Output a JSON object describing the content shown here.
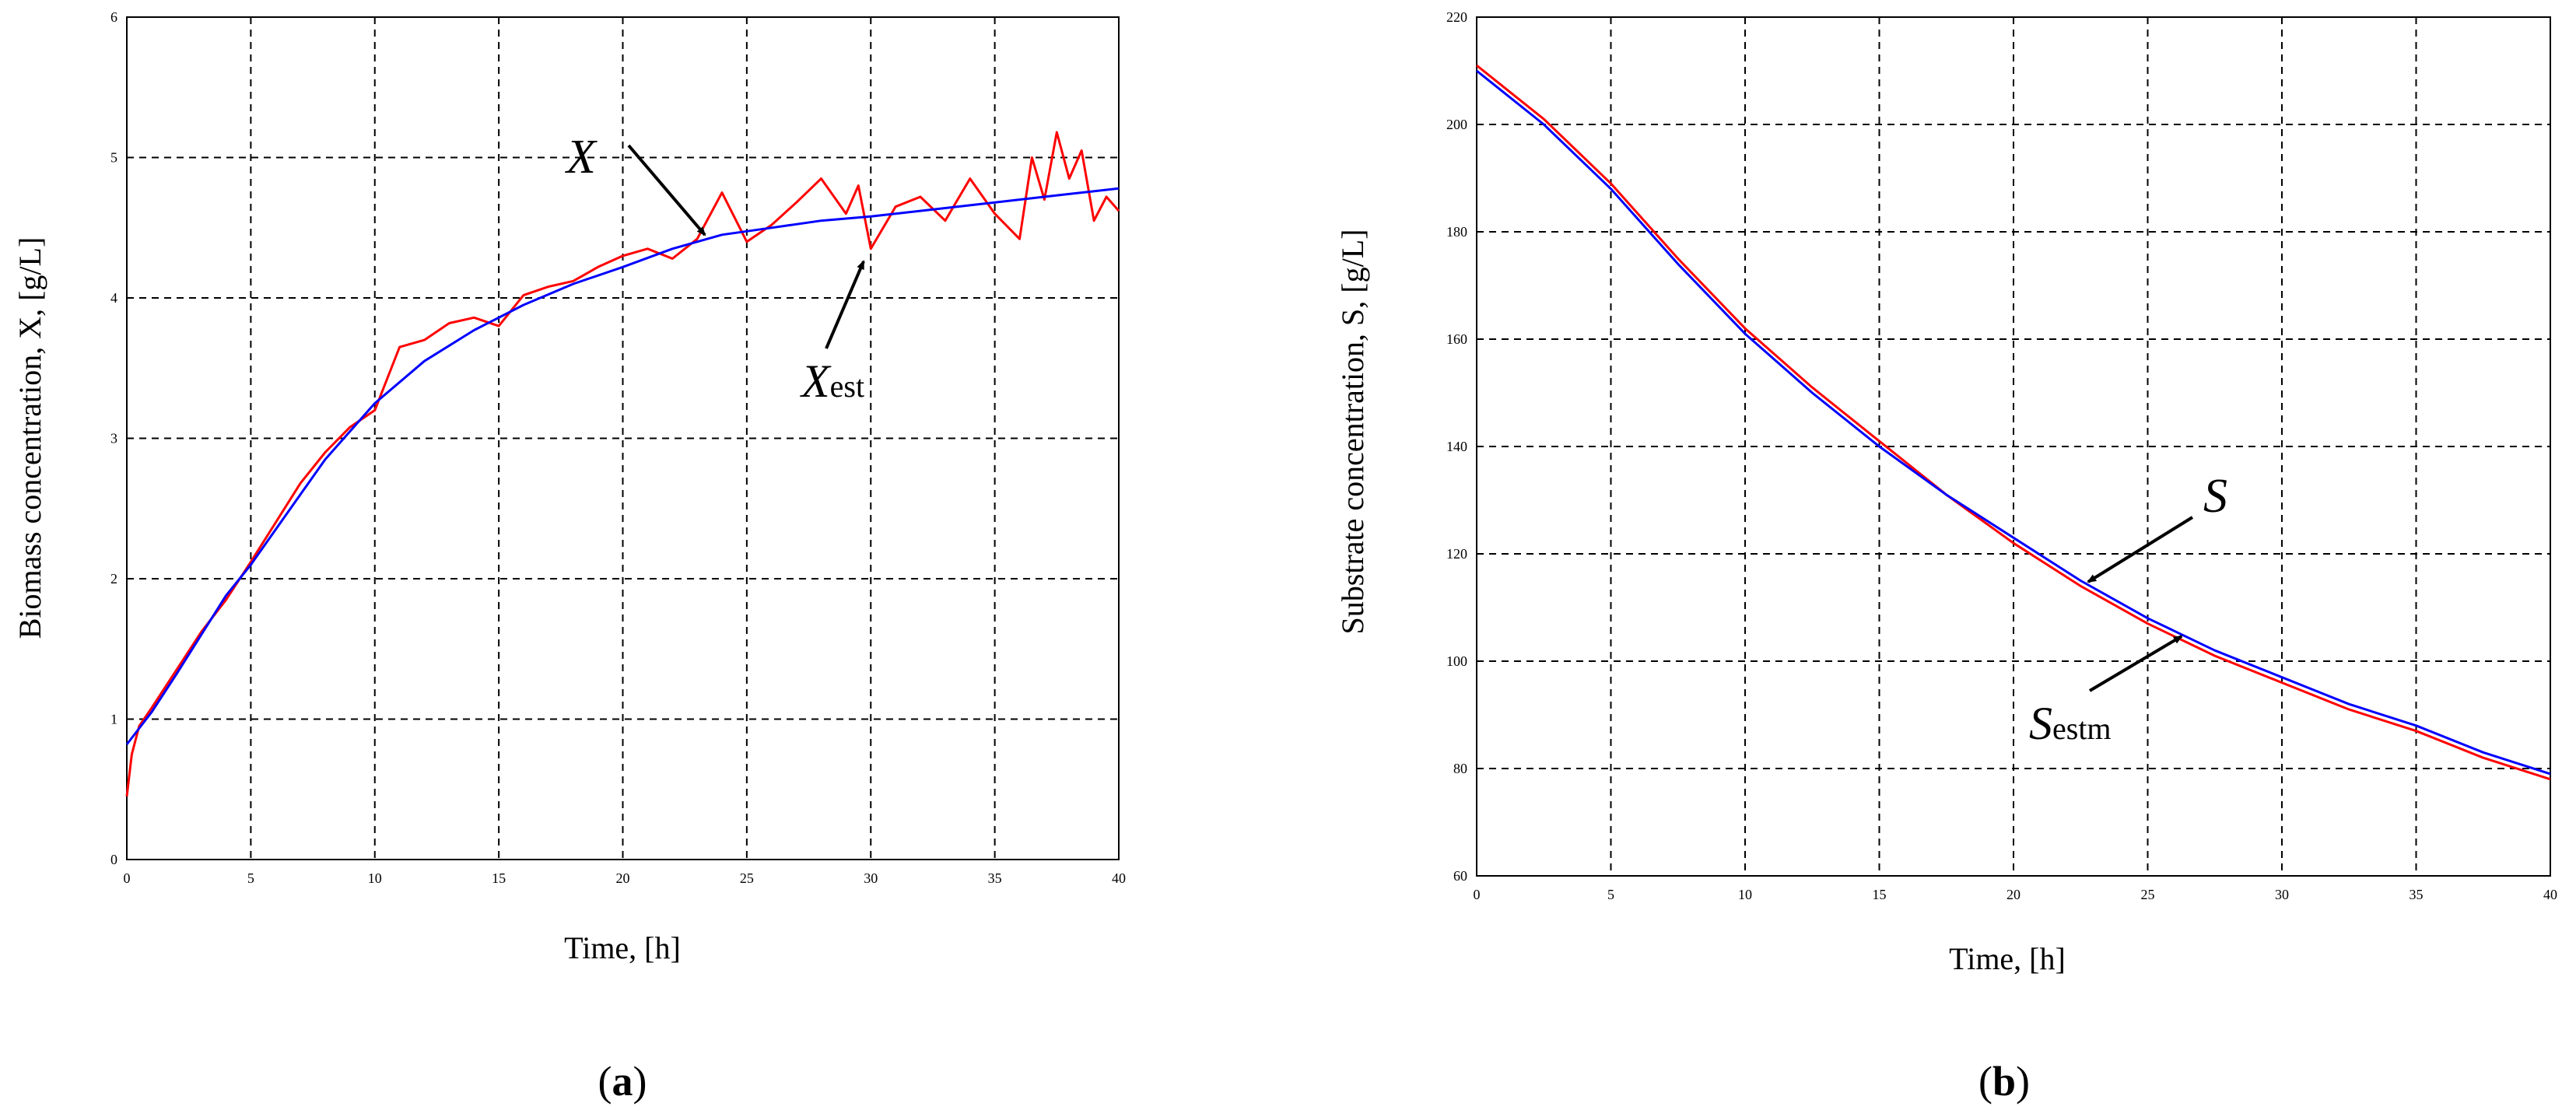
{
  "chart_data": [
    {
      "type": "line",
      "xlabel": "Time, [h]",
      "ylabel": "Biomass concentration, X, [g/L]",
      "xlim": [
        0,
        40
      ],
      "ylim": [
        0,
        6
      ],
      "xticks": [
        "0",
        "5",
        "10",
        "15",
        "20",
        "25",
        "30",
        "35",
        "40"
      ],
      "yticks": [
        "0",
        "1",
        "2",
        "3",
        "4",
        "5",
        "6"
      ],
      "grid": true,
      "series": [
        {
          "name": "X",
          "color": "#0000ff",
          "x": [
            0,
            1,
            2,
            3,
            4,
            5,
            6,
            7,
            8,
            9,
            10,
            12,
            14,
            16,
            18,
            20,
            22,
            24,
            26,
            28,
            30,
            32,
            34,
            36,
            38,
            40
          ],
          "y": [
            0.82,
            1.05,
            1.32,
            1.6,
            1.88,
            2.1,
            2.35,
            2.6,
            2.85,
            3.05,
            3.25,
            3.55,
            3.77,
            3.95,
            4.1,
            4.22,
            4.35,
            4.45,
            4.5,
            4.55,
            4.58,
            4.62,
            4.66,
            4.7,
            4.74,
            4.78
          ]
        },
        {
          "name": "Xest",
          "color": "#ff0000",
          "x": [
            0,
            0.2,
            0.5,
            1,
            2,
            3,
            4,
            5,
            6,
            7,
            8,
            9,
            10,
            11,
            12,
            13,
            14,
            15,
            16,
            17,
            18,
            19,
            20,
            21,
            22,
            23,
            24,
            25,
            26,
            27,
            28,
            29,
            29.5,
            30,
            31,
            32,
            33,
            34,
            35,
            36,
            36.5,
            37,
            37.5,
            38,
            38.5,
            39,
            39.5,
            40
          ],
          "y": [
            0.45,
            0.75,
            0.95,
            1.08,
            1.35,
            1.62,
            1.85,
            2.12,
            2.4,
            2.68,
            2.9,
            3.08,
            3.2,
            3.65,
            3.7,
            3.82,
            3.86,
            3.8,
            4.02,
            4.08,
            4.12,
            4.22,
            4.3,
            4.35,
            4.28,
            4.42,
            4.75,
            4.4,
            4.52,
            4.68,
            4.85,
            4.6,
            4.8,
            4.35,
            4.65,
            4.72,
            4.55,
            4.85,
            4.6,
            4.42,
            5.0,
            4.7,
            5.18,
            4.85,
            5.05,
            4.55,
            4.72,
            4.62
          ]
        }
      ],
      "annotations": [
        {
          "text": "X"
        },
        {
          "text": "X",
          "subscript": "est"
        }
      ],
      "caption": {
        "open": "(",
        "letter": "a",
        "close": ")"
      }
    },
    {
      "type": "line",
      "xlabel": "Time, [h]",
      "ylabel": "Substrate concentration, S, [g/L]",
      "xlim": [
        0,
        40
      ],
      "ylim": [
        60,
        220
      ],
      "xticks": [
        "0",
        "5",
        "10",
        "15",
        "20",
        "25",
        "30",
        "35",
        "40"
      ],
      "yticks": [
        "60",
        "80",
        "100",
        "120",
        "140",
        "160",
        "180",
        "200",
        "220"
      ],
      "grid": true,
      "series": [
        {
          "name": "S",
          "color": "#0000ff",
          "x": [
            0,
            2.5,
            5,
            7.5,
            10,
            12.5,
            15,
            17.5,
            20,
            22.5,
            25,
            27.5,
            30,
            32.5,
            35,
            37.5,
            40
          ],
          "y": [
            210,
            200,
            188,
            174,
            161,
            150,
            140,
            131,
            123,
            115,
            108,
            102,
            97,
            92,
            88,
            83,
            79
          ]
        },
        {
          "name": "Sestm",
          "color": "#ff0000",
          "x": [
            0,
            2.5,
            5,
            7.5,
            10,
            12.5,
            15,
            17.5,
            20,
            22.5,
            25,
            27.5,
            30,
            32.5,
            35,
            37.5,
            40
          ],
          "y": [
            211,
            201,
            189,
            175,
            162,
            151,
            141,
            131,
            122,
            114,
            107,
            101,
            96,
            91,
            87,
            82,
            78
          ]
        }
      ],
      "annotations": [
        {
          "text": "S"
        },
        {
          "text": "S",
          "subscript": "estm"
        }
      ],
      "caption": {
        "open": "(",
        "letter": "b",
        "close": ")"
      }
    }
  ]
}
